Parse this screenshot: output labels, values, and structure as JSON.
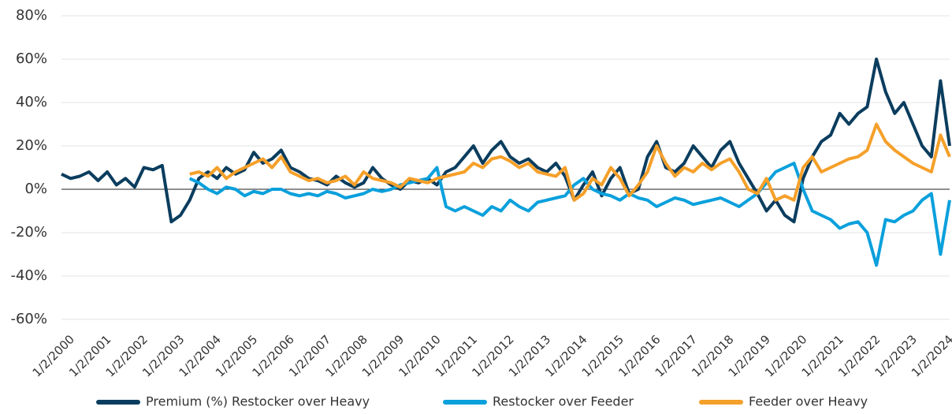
{
  "chart_data": {
    "type": "line",
    "x": [
      "1/2/2000",
      "4/2/2000",
      "7/2/2000",
      "10/2/2000",
      "1/2/2001",
      "4/2/2001",
      "7/2/2001",
      "10/2/2001",
      "1/2/2002",
      "4/2/2002",
      "7/2/2002",
      "10/2/2002",
      "1/2/2003",
      "4/2/2003",
      "7/2/2003",
      "10/2/2003",
      "1/2/2004",
      "4/2/2004",
      "7/2/2004",
      "10/2/2004",
      "1/2/2005",
      "4/2/2005",
      "7/2/2005",
      "10/2/2005",
      "1/2/2006",
      "4/2/2006",
      "7/2/2006",
      "10/2/2006",
      "1/2/2007",
      "4/2/2007",
      "7/2/2007",
      "10/2/2007",
      "1/2/2008",
      "4/2/2008",
      "7/2/2008",
      "10/2/2008",
      "1/2/2009",
      "4/2/2009",
      "7/2/2009",
      "10/2/2009",
      "1/2/2010",
      "4/2/2010",
      "7/2/2010",
      "10/2/2010",
      "1/2/2011",
      "4/2/2011",
      "7/2/2011",
      "10/2/2011",
      "1/2/2012",
      "4/2/2012",
      "7/2/2012",
      "10/2/2012",
      "1/2/2013",
      "4/2/2013",
      "7/2/2013",
      "10/2/2013",
      "1/2/2014",
      "4/2/2014",
      "7/2/2014",
      "10/2/2014",
      "1/2/2015",
      "4/2/2015",
      "7/2/2015",
      "10/2/2015",
      "1/2/2016",
      "4/2/2016",
      "7/2/2016",
      "10/2/2016",
      "1/2/2017",
      "4/2/2017",
      "7/2/2017",
      "10/2/2017",
      "1/2/2018",
      "4/2/2018",
      "7/2/2018",
      "10/2/2018",
      "1/2/2019",
      "4/2/2019",
      "7/2/2019",
      "10/2/2019",
      "1/2/2020",
      "4/2/2020",
      "7/2/2020",
      "10/2/2020",
      "1/2/2021",
      "4/2/2021",
      "7/2/2021",
      "10/2/2021",
      "1/2/2022",
      "4/2/2022",
      "7/2/2022",
      "10/2/2022",
      "1/2/2023",
      "4/2/2023",
      "7/2/2023",
      "10/2/2023",
      "1/2/2024",
      "4/2/2024"
    ],
    "series": [
      {
        "name": "Premium (%) Restocker over Heavy",
        "color": "#0b3d5e",
        "values": [
          7,
          5,
          6,
          8,
          4,
          8,
          2,
          5,
          1,
          10,
          9,
          11,
          -15,
          -12,
          -5,
          5,
          8,
          5,
          10,
          7,
          9,
          17,
          12,
          14,
          18,
          10,
          8,
          5,
          4,
          2,
          6,
          3,
          1,
          3,
          10,
          5,
          2,
          0,
          4,
          3,
          5,
          2,
          8,
          10,
          15,
          20,
          12,
          18,
          22,
          15,
          12,
          14,
          10,
          8,
          12,
          6,
          -5,
          2,
          8,
          -3,
          5,
          10,
          -2,
          0,
          15,
          22,
          10,
          8,
          12,
          20,
          15,
          10,
          18,
          22,
          12,
          5,
          -2,
          -10,
          -5,
          -12,
          -15,
          5,
          15,
          22,
          25,
          35,
          30,
          35,
          38,
          60,
          45,
          35,
          40,
          30,
          20,
          15,
          50,
          20
        ]
      },
      {
        "name": "Restocker over Feeder",
        "color": "#0aa0dc",
        "values": [
          null,
          null,
          null,
          null,
          null,
          null,
          null,
          null,
          null,
          null,
          null,
          null,
          null,
          null,
          5,
          3,
          0,
          -2,
          1,
          0,
          -3,
          -1,
          -2,
          0,
          0,
          -2,
          -3,
          -2,
          -3,
          -1,
          -2,
          -4,
          -3,
          -2,
          0,
          -1,
          0,
          2,
          3,
          4,
          5,
          10,
          -8,
          -10,
          -8,
          -10,
          -12,
          -8,
          -10,
          -5,
          -8,
          -10,
          -6,
          -5,
          -4,
          -3,
          2,
          5,
          0,
          -2,
          -3,
          -5,
          -2,
          -4,
          -5,
          -8,
          -6,
          -4,
          -5,
          -7,
          -6,
          -5,
          -4,
          -6,
          -8,
          -5,
          -2,
          3,
          8,
          10,
          12,
          0,
          -10,
          -12,
          -14,
          -18,
          -16,
          -15,
          -20,
          -35,
          -14,
          -15,
          -12,
          -10,
          -5,
          -2,
          -30,
          -5
        ]
      },
      {
        "name": "Feeder over Heavy",
        "color": "#f5a02a",
        "values": [
          null,
          null,
          null,
          null,
          null,
          null,
          null,
          null,
          null,
          null,
          null,
          null,
          null,
          null,
          7,
          8,
          6,
          10,
          5,
          8,
          10,
          12,
          14,
          10,
          15,
          8,
          6,
          4,
          5,
          3,
          4,
          6,
          2,
          8,
          5,
          4,
          3,
          1,
          5,
          4,
          3,
          5,
          6,
          7,
          8,
          12,
          10,
          14,
          15,
          13,
          10,
          12,
          8,
          7,
          6,
          10,
          -5,
          -2,
          5,
          2,
          10,
          5,
          -3,
          2,
          8,
          20,
          12,
          6,
          10,
          8,
          12,
          9,
          12,
          14,
          8,
          0,
          -2,
          5,
          -5,
          -3,
          -5,
          10,
          15,
          8,
          10,
          12,
          14,
          15,
          18,
          30,
          22,
          18,
          15,
          12,
          10,
          8,
          25,
          15
        ]
      }
    ],
    "xlim": [
      "1/2/2000",
      "4/2/2024"
    ],
    "xticks": [
      "1/2/2000",
      "1/2/2001",
      "1/2/2002",
      "1/2/2003",
      "1/2/2004",
      "1/2/2005",
      "1/2/2006",
      "1/2/2007",
      "1/2/2008",
      "1/2/2009",
      "1/2/2010",
      "1/2/2011",
      "1/2/2012",
      "1/2/2013",
      "1/2/2014",
      "1/2/2015",
      "1/2/2016",
      "1/2/2017",
      "1/2/2018",
      "1/2/2019",
      "1/2/2020",
      "1/2/2021",
      "1/2/2022",
      "1/2/2023",
      "1/2/2024"
    ],
    "ylim": [
      -60,
      80
    ],
    "yticks": [
      {
        "value": -60,
        "label": "-60%"
      },
      {
        "value": -40,
        "label": "-40%"
      },
      {
        "value": -20,
        "label": "-20%"
      },
      {
        "value": 0,
        "label": "0%"
      },
      {
        "value": 20,
        "label": "20%"
      },
      {
        "value": 40,
        "label": "40%"
      },
      {
        "value": 60,
        "label": "60%"
      },
      {
        "value": 80,
        "label": "80%"
      }
    ],
    "grid": true,
    "legend": "bottom"
  }
}
